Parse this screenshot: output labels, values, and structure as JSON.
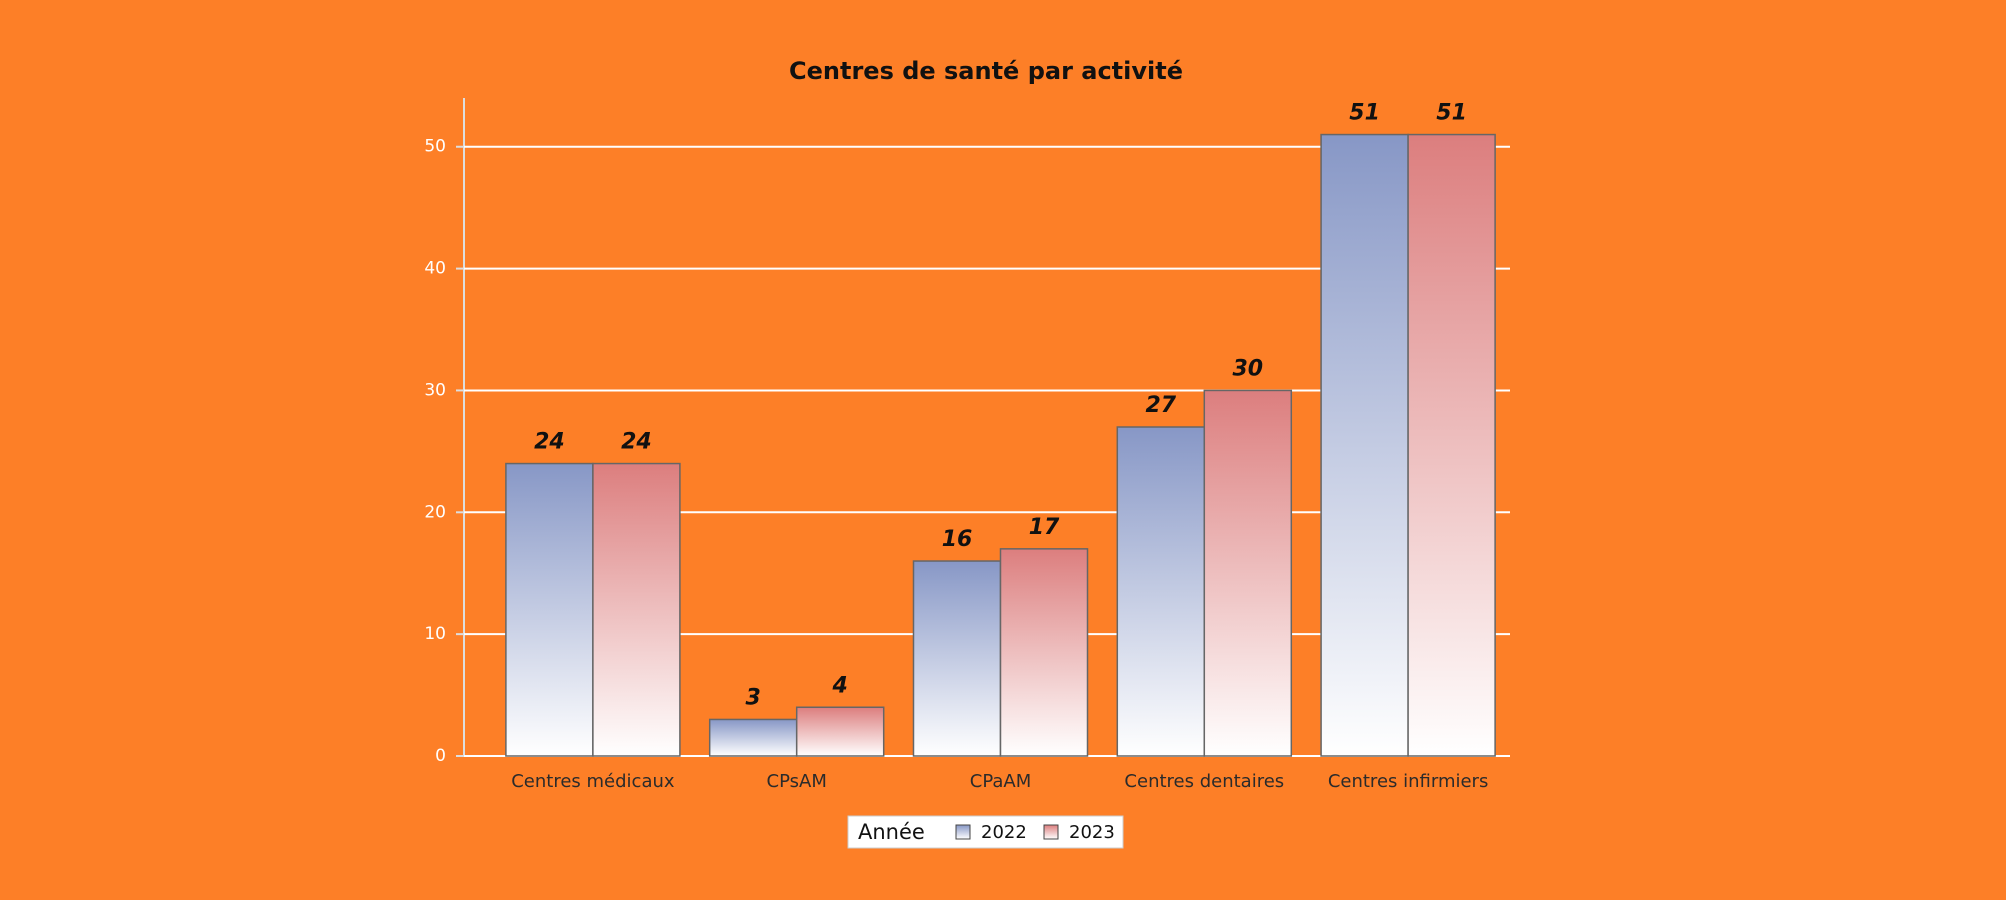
{
  "chart_data": {
    "type": "bar",
    "title": "Centres de santé par activité",
    "categories": [
      "Centres médicaux",
      "CPsAM",
      "CPaAM",
      "Centres dentaires",
      "Centres infirmiers"
    ],
    "legend_title": "Année",
    "series": [
      {
        "name": "2022",
        "color": "#8797c6",
        "values": [
          24,
          3,
          16,
          27,
          51
        ]
      },
      {
        "name": "2023",
        "color": "#dc7e7e",
        "values": [
          24,
          4,
          17,
          30,
          51
        ]
      }
    ],
    "ylim": [
      0,
      54
    ],
    "yticks": [
      0,
      10,
      20,
      30,
      40,
      50
    ],
    "grid": true,
    "legend": "bottom"
  }
}
